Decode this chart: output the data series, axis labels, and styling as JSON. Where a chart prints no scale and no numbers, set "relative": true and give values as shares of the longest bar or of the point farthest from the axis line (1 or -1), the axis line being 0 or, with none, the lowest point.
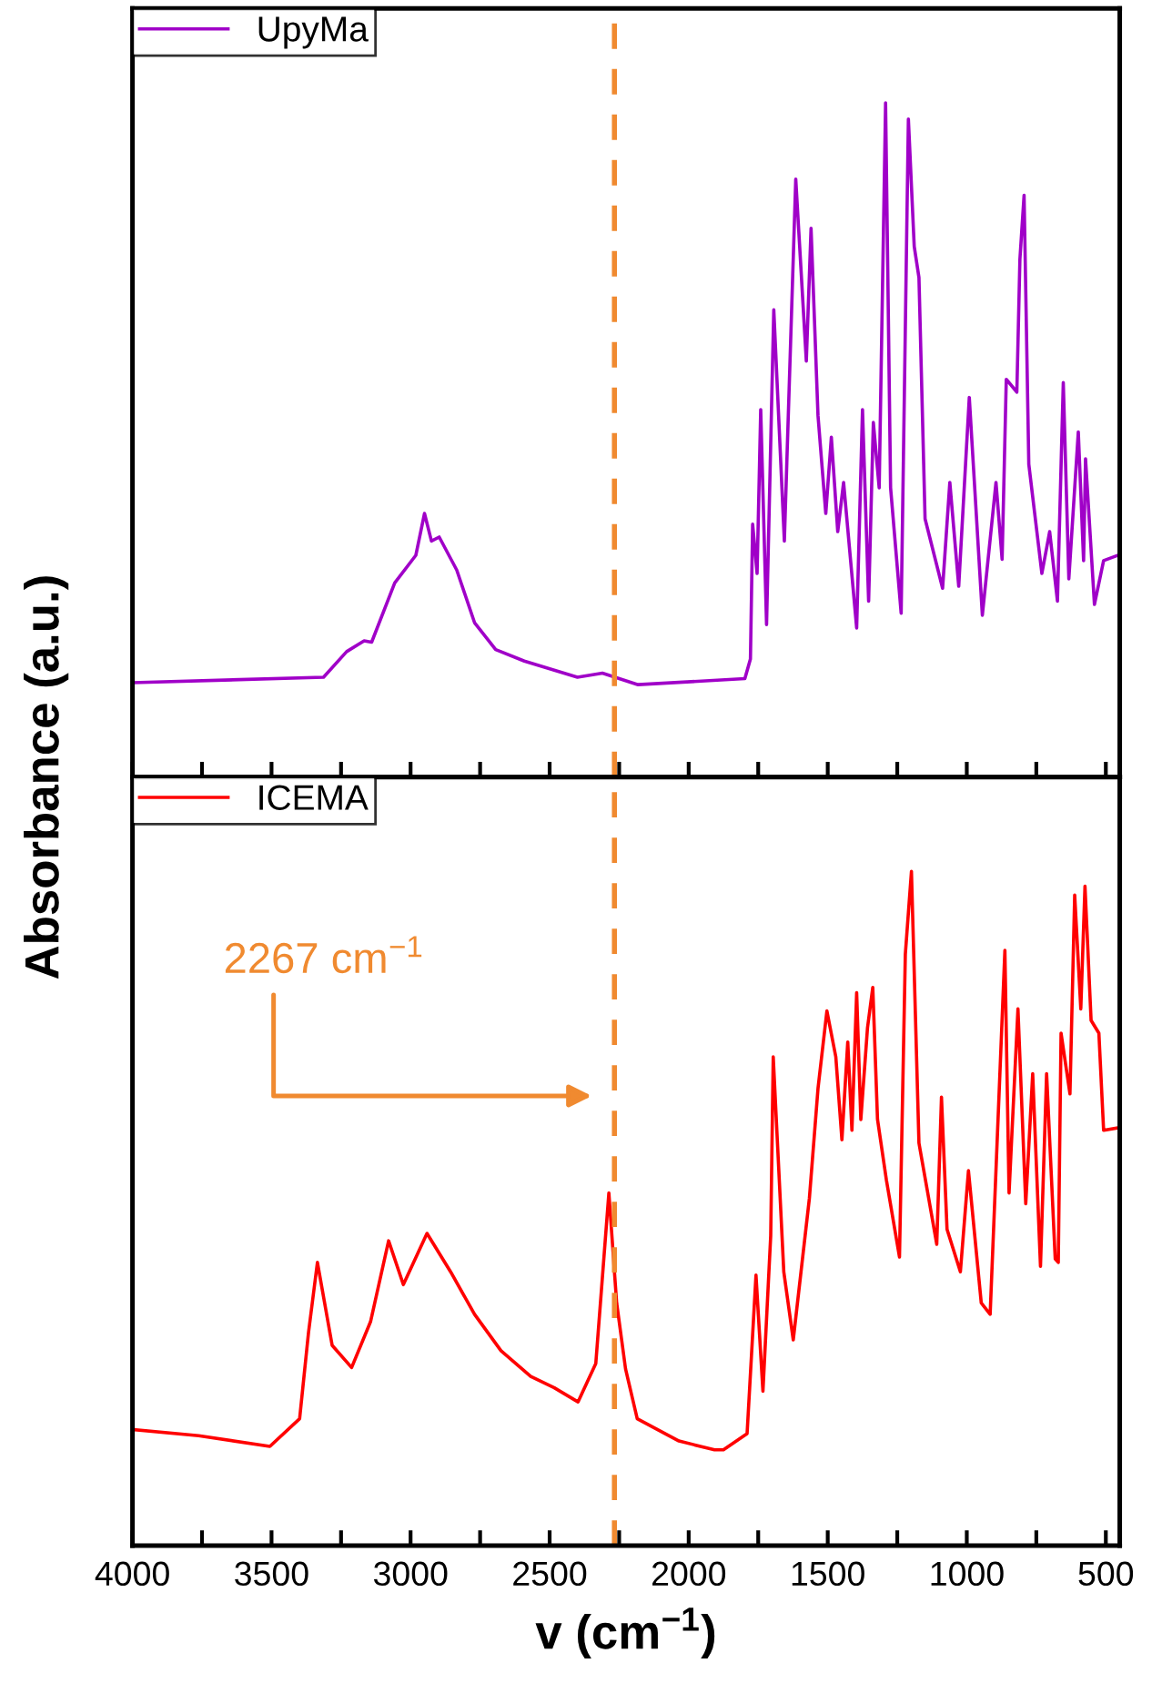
{
  "chart_data": [
    {
      "type": "line",
      "relative": true,
      "ylabel": "Absorbance (a.u.)",
      "xlim": [
        4000,
        450
      ],
      "xticks": [
        4000,
        {
          "value": 3750,
          "label": null
        },
        3500,
        {
          "value": 3250,
          "label": null
        },
        3000,
        {
          "value": 2750,
          "label": null
        },
        2500,
        {
          "value": 2250,
          "label": null
        },
        2000,
        {
          "value": 1750,
          "label": null
        },
        1500,
        {
          "value": 1250,
          "label": null
        },
        1000,
        {
          "value": 750,
          "label": null
        },
        500
      ],
      "tick_labels": false,
      "legend": "top left",
      "grid": false,
      "ref_lines": [
        {
          "axis": "x",
          "value": 2267,
          "color": "#f08a30",
          "line_style": "dashed"
        }
      ],
      "series": [
        {
          "name": "UpyMa",
          "color": "#a000c8",
          "x": [
            4000,
            3313,
            3230,
            3167,
            3140,
            3057,
            2981,
            2950,
            2925,
            2897,
            2834,
            2770,
            2694,
            2591,
            2400,
            2310,
            2182,
            1798,
            1778,
            1777,
            1770,
            1754,
            1741,
            1720,
            1694,
            1656,
            1615,
            1577,
            1560,
            1535,
            1507,
            1487,
            1464,
            1443,
            1396,
            1375,
            1353,
            1336,
            1315,
            1292,
            1274,
            1236,
            1210,
            1189,
            1172,
            1150,
            1087,
            1061,
            1029,
            991,
            944,
            895,
            873,
            858,
            820,
            809,
            794,
            777,
            730,
            702,
            674,
            653,
            633,
            599,
            580,
            573,
            541,
            508,
            450
          ],
          "values": [
            0.14,
            0.148,
            0.186,
            0.202,
            0.2,
            0.288,
            0.329,
            0.391,
            0.35,
            0.356,
            0.307,
            0.229,
            0.189,
            0.172,
            0.148,
            0.154,
            0.137,
            0.146,
            0.175,
            0.199,
            0.375,
            0.302,
            0.545,
            0.226,
            0.693,
            0.35,
            0.887,
            0.617,
            0.814,
            0.536,
            0.391,
            0.504,
            0.364,
            0.437,
            0.221,
            0.545,
            0.261,
            0.526,
            0.429,
            1.0,
            0.429,
            0.243,
            0.976,
            0.787,
            0.741,
            0.383,
            0.28,
            0.437,
            0.283,
            0.563,
            0.24,
            0.437,
            0.323,
            0.59,
            0.571,
            0.768,
            0.863,
            0.464,
            0.302,
            0.364,
            0.261,
            0.585,
            0.294,
            0.512,
            0.321,
            0.472,
            0.256,
            0.321,
            0.33
          ]
        }
      ]
    },
    {
      "type": "line",
      "relative": true,
      "xlabel": "v (cm$^{−1}$)",
      "xlim": [
        4000,
        450
      ],
      "xticks": [
        4000,
        {
          "value": 3750,
          "label": null
        },
        3500,
        {
          "value": 3250,
          "label": null
        },
        3000,
        {
          "value": 2750,
          "label": null
        },
        2500,
        {
          "value": 2250,
          "label": null
        },
        2000,
        {
          "value": 1750,
          "label": null
        },
        1500,
        {
          "value": 1250,
          "label": null
        },
        1000,
        {
          "value": 750,
          "label": null
        },
        500
      ],
      "tick_labels": "x",
      "legend": "top left",
      "grid": false,
      "ref_lines": [
        {
          "axis": "x",
          "value": 2267,
          "color": "#f08a30",
          "line_style": "dashed"
        }
      ],
      "annotations": [
        "2267 cm$^{−1}$"
      ],
      "series": [
        {
          "name": "ICEMA",
          "color": "#ff0000",
          "x": [
            3996,
            3762,
            3506,
            3399,
            3367,
            3335,
            3282,
            3212,
            3144,
            3079,
            3026,
            2941,
            2856,
            2770,
            2675,
            2568,
            2483,
            2398,
            2334,
            2287,
            2259,
            2227,
            2185,
            2035,
            1907,
            1875,
            1790,
            1758,
            1733,
            1705,
            1696,
            1658,
            1624,
            1566,
            1535,
            1503,
            1471,
            1449,
            1428,
            1413,
            1396,
            1381,
            1357,
            1338,
            1321,
            1289,
            1242,
            1221,
            1199,
            1172,
            1108,
            1091,
            1071,
            1023,
            994,
            948,
            916,
            863,
            848,
            816,
            788,
            763,
            735,
            713,
            682,
            671,
            661,
            629,
            612,
            590,
            575,
            553,
            525,
            508,
            450
          ],
          "values": [
            0.172,
            0.163,
            0.147,
            0.188,
            0.316,
            0.42,
            0.297,
            0.264,
            0.332,
            0.452,
            0.387,
            0.463,
            0.406,
            0.343,
            0.289,
            0.251,
            0.234,
            0.213,
            0.27,
            0.523,
            0.36,
            0.262,
            0.188,
            0.155,
            0.142,
            0.142,
            0.166,
            0.401,
            0.229,
            0.46,
            0.725,
            0.406,
            0.305,
            0.515,
            0.678,
            0.793,
            0.725,
            0.602,
            0.747,
            0.616,
            0.82,
            0.632,
            0.768,
            0.828,
            0.632,
            0.542,
            0.428,
            0.877,
            1.0,
            0.597,
            0.447,
            0.665,
            0.469,
            0.406,
            0.556,
            0.36,
            0.343,
            0.883,
            0.523,
            0.796,
            0.507,
            0.7,
            0.414,
            0.7,
            0.425,
            0.42,
            0.76,
            0.67,
            0.965,
            0.796,
            0.978,
            0.779,
            0.76,
            0.616,
            0.62
          ]
        }
      ]
    }
  ]
}
